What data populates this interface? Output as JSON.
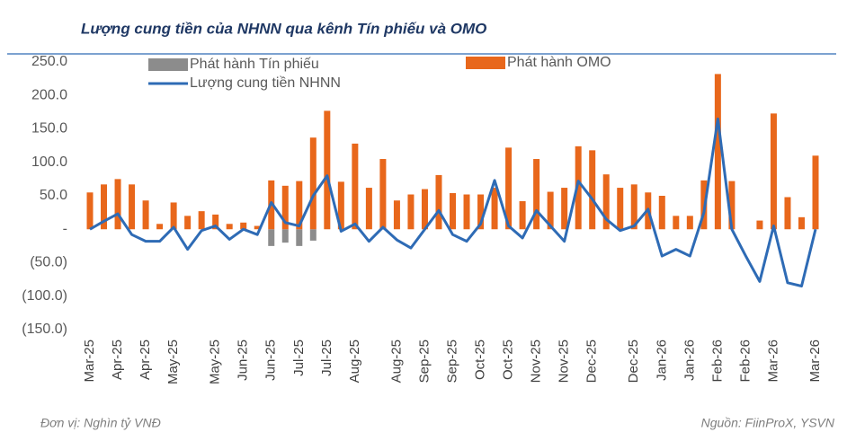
{
  "chart_data": {
    "type": "bar-line",
    "title": "Lượng cung tiền của NHNN qua kênh Tín phiếu và OMO",
    "note_left": "Đơn vị: Nghìn tỷ VNĐ",
    "note_right": "Nguồn: FiinProX, YSVN",
    "categories": [
      "Mar-25",
      null,
      "Apr-25",
      null,
      "Apr-25",
      null,
      "May-25",
      null,
      null,
      "May-25",
      null,
      "Jun-25",
      null,
      "Jun-25",
      null,
      "Jul-25",
      null,
      "Jul-25",
      null,
      "Aug-25",
      null,
      null,
      "Aug-25",
      null,
      "Sep-25",
      null,
      "Sep-25",
      null,
      "Oct-25",
      null,
      "Oct-25",
      null,
      "Nov-25",
      null,
      "Nov-25",
      null,
      "Dec-25",
      null,
      null,
      "Dec-25",
      null,
      "Jan-26",
      null,
      "Jan-26",
      null,
      "Feb-26",
      null,
      "Feb-26",
      null,
      "Mar-26",
      null,
      null,
      "Mar-26"
    ],
    "series": [
      {
        "name": "Phát hành Tín phiếu",
        "kind": "bar",
        "color": "#8c8c8c",
        "values": [
          null,
          null,
          null,
          null,
          null,
          null,
          null,
          null,
          null,
          null,
          null,
          null,
          null,
          -25,
          -20,
          -25,
          -17,
          null,
          null,
          null,
          null,
          null,
          null,
          null,
          null,
          null,
          null,
          null,
          null,
          null,
          null,
          null,
          null,
          null,
          null,
          null,
          null,
          null,
          null,
          null,
          null,
          null,
          null,
          null,
          null,
          null,
          null,
          null,
          null,
          null,
          null,
          null,
          null
        ]
      },
      {
        "name": "Phát hành OMO",
        "kind": "bar",
        "color": "#e8671b",
        "values": [
          55,
          67,
          75,
          67,
          43,
          8,
          40,
          20,
          27,
          22,
          8,
          10,
          5,
          73,
          65,
          72,
          137,
          177,
          71,
          128,
          62,
          105,
          43,
          52,
          60,
          81,
          54,
          52,
          52,
          62,
          122,
          42,
          105,
          56,
          62,
          124,
          118,
          82,
          62,
          67,
          55,
          50,
          20,
          20,
          73,
          232,
          72,
          0,
          13,
          173,
          48,
          18,
          110
        ]
      },
      {
        "name": "Lượng cung tiền NHNN",
        "kind": "line",
        "color": "#2e6bb5",
        "values": [
          0,
          12,
          23,
          -8,
          -18,
          -18,
          3,
          -30,
          -2,
          5,
          -15,
          0,
          -8,
          40,
          10,
          5,
          50,
          80,
          -3,
          8,
          -18,
          3,
          -16,
          -28,
          0,
          28,
          -8,
          -18,
          8,
          73,
          5,
          -13,
          28,
          5,
          -18,
          72,
          45,
          15,
          -2,
          5,
          30,
          -40,
          -30,
          -40,
          25,
          165,
          0,
          -40,
          -78,
          5,
          -80,
          -85,
          0
        ]
      }
    ],
    "ylim": [
      -150,
      250
    ],
    "yticks": [
      {
        "value": -150,
        "label": "(150.0)"
      },
      {
        "value": -100,
        "label": "(100.0)"
      },
      {
        "value": -50,
        "label": "(50.0)"
      },
      {
        "value": 0,
        "label": "-"
      },
      {
        "value": 50,
        "label": "50.0"
      },
      {
        "value": 100,
        "label": "100.0"
      },
      {
        "value": 150,
        "label": "150.0"
      },
      {
        "value": 200,
        "label": "200.0"
      },
      {
        "value": 250,
        "label": "250.0"
      }
    ]
  }
}
